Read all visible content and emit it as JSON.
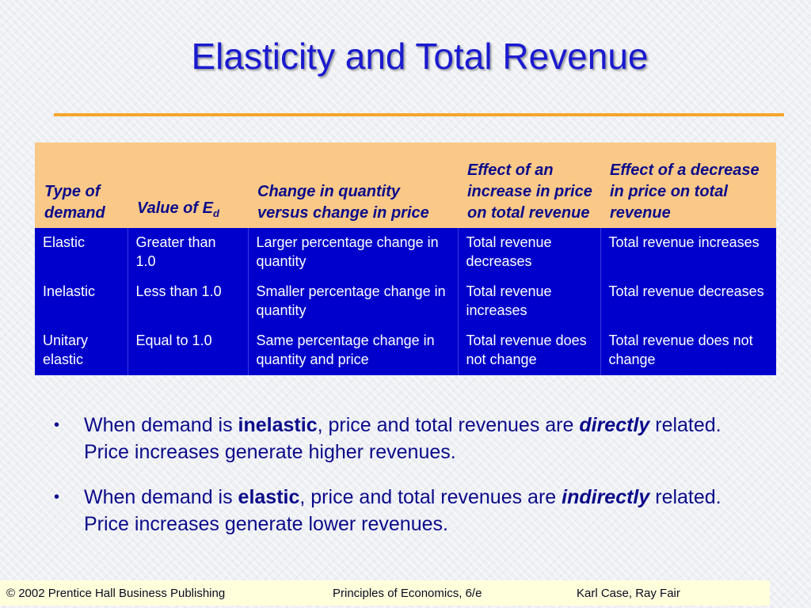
{
  "title": "Elasticity and Total Revenue",
  "table": {
    "headers": [
      {
        "text": "Type of demand"
      },
      {
        "text": "Value of E",
        "sub": "d"
      },
      {
        "text": "Change in quantity versus change in price"
      },
      {
        "text": "Effect of an increase in price on total revenue"
      },
      {
        "text": "Effect of a decrease in price on total revenue"
      }
    ],
    "rows": [
      [
        "Elastic",
        "Greater than 1.0",
        "Larger percentage change in quantity",
        "Total revenue decreases",
        "Total revenue increases"
      ],
      [
        "Inelastic",
        "Less than 1.0",
        "Smaller percentage change in quantity",
        "Total revenue increases",
        "Total revenue decreases"
      ],
      [
        "Unitary elastic",
        "Equal to 1.0",
        "Same percentage change in quantity and price",
        "Total revenue does not change",
        "Total revenue does not change"
      ]
    ]
  },
  "bullets": [
    {
      "dot": "•",
      "p1": "When demand is ",
      "b": "inelastic",
      "p2": ", price and total revenues are ",
      "bi": "directly",
      "p3": " related.   Price increases generate higher revenues."
    },
    {
      "dot": "•",
      "p1": "When demand is ",
      "b": "elastic",
      "p2": ", price and total revenues are ",
      "bi": "indirectly",
      "p3": " related.  Price increases generate lower revenues."
    }
  ],
  "footer": {
    "left": "© 2002 Prentice Hall Business Publishing",
    "center": "Principles of Economics, 6/e",
    "right": "Karl Case, Ray Fair"
  }
}
